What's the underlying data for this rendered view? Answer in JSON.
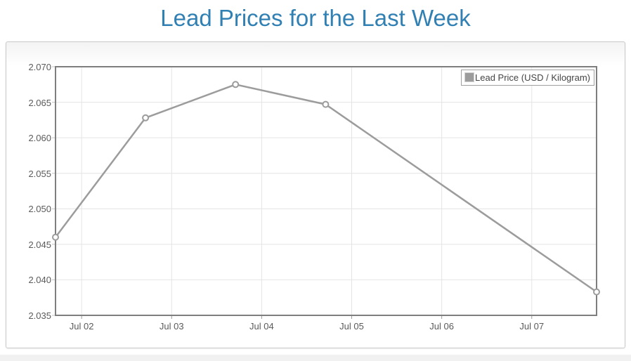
{
  "page": {
    "title": "Lead Prices for the Last Week",
    "background": "#ffffff",
    "footer_background": "#f1f1f1",
    "title_color": "#3180b3"
  },
  "chart_data": {
    "type": "line",
    "title": "Lead Prices for the Last Week",
    "xlabel": "",
    "ylabel": "",
    "grid": true,
    "legend": {
      "position": "top-right",
      "entries": [
        {
          "label": "Lead Price (USD / Kilogram)",
          "swatch_color": "#9c9c9c"
        }
      ]
    },
    "x_domain": [
      -0.29,
      5.72
    ],
    "x_ticks": [
      {
        "label": "Jul 02",
        "day": 0
      },
      {
        "label": "Jul 03",
        "day": 1
      },
      {
        "label": "Jul 04",
        "day": 2
      },
      {
        "label": "Jul 05",
        "day": 3
      },
      {
        "label": "Jul 06",
        "day": 4
      },
      {
        "label": "Jul 07",
        "day": 5
      }
    ],
    "y_domain": [
      2.035,
      2.07
    ],
    "y_ticks": [
      {
        "label": "2.035",
        "value": 2.035
      },
      {
        "label": "2.040",
        "value": 2.04
      },
      {
        "label": "2.045",
        "value": 2.045
      },
      {
        "label": "2.050",
        "value": 2.05
      },
      {
        "label": "2.055",
        "value": 2.055
      },
      {
        "label": "2.060",
        "value": 2.06
      },
      {
        "label": "2.065",
        "value": 2.065
      },
      {
        "label": "2.070",
        "value": 2.07
      }
    ],
    "series": [
      {
        "name": "Lead Price (USD / Kilogram)",
        "color": "#9c9c9c",
        "marker": "circle",
        "points": [
          {
            "day": -0.29,
            "value": 2.046
          },
          {
            "day": 0.71,
            "value": 2.0628
          },
          {
            "day": 1.71,
            "value": 2.0675
          },
          {
            "day": 2.71,
            "value": 2.0647
          },
          {
            "day": 5.72,
            "value": 2.0383
          }
        ]
      }
    ],
    "colors": {
      "plot_background": "#ffffff",
      "gridline": "#e4e4e4",
      "axis_border": "#7e7e7e",
      "left_tick_mark": "#c4c4c4",
      "bottom_tick_mark": "#9a9a9a",
      "tick_label": "#5a5a5a",
      "marker_fill": "#ffffff"
    }
  }
}
